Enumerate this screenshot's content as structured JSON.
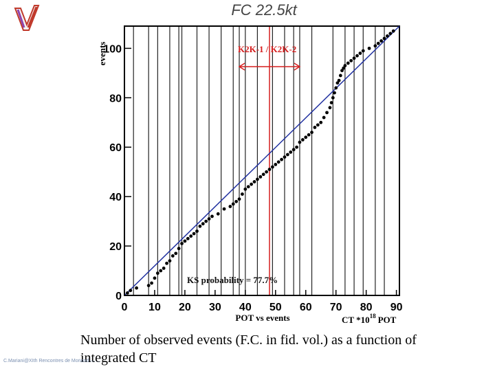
{
  "slide": {
    "title": "FC 22.5kt",
    "caption": "Number of observed events (F.C. in fid. vol.) as a function of integrated CT",
    "footer": "C.Mariani@XIth Rencontres de Moriond — ..."
  },
  "chart_data": {
    "type": "scatter",
    "title": "",
    "xlabel": "POT vs events",
    "xunit_label": "CT *10",
    "xunit_exp": "18",
    "xunit_suffix": "POT",
    "ylabel": "events",
    "xlim": [
      0,
      91
    ],
    "ylim": [
      0,
      109
    ],
    "xticks": [
      0,
      10,
      20,
      30,
      40,
      50,
      60,
      70,
      80,
      90
    ],
    "yticks": [
      0,
      20,
      40,
      60,
      80,
      100
    ],
    "grid": false,
    "fit_line": [
      [
        0,
        0
      ],
      [
        91,
        109
      ]
    ],
    "period_boundaries": [
      3,
      8,
      11,
      15,
      18,
      19,
      24,
      28,
      32,
      36,
      38,
      40,
      44,
      49,
      53,
      56,
      58,
      62,
      69,
      73,
      76,
      79,
      83,
      86
    ],
    "red_marker": 48,
    "period_label": "K2K-1 / K2K-2",
    "period_arrow": [
      38,
      58
    ],
    "annotation": "KS probability = 77.7%",
    "series": [
      {
        "name": "",
        "x": [
          1,
          2,
          4,
          8,
          9,
          10,
          11,
          12,
          13,
          14,
          15,
          16,
          17,
          18,
          19,
          20,
          21,
          22,
          23,
          24,
          25,
          26,
          27,
          28,
          29,
          31,
          33,
          35,
          36,
          37,
          38,
          39,
          40,
          41,
          42,
          43,
          44,
          45,
          46,
          47,
          48,
          49,
          50,
          51,
          52,
          53,
          54,
          55,
          56,
          57,
          58,
          59,
          60,
          61,
          62,
          63,
          64,
          65,
          66,
          67,
          68,
          68.5,
          69,
          69.5,
          70,
          70.5,
          71,
          71.5,
          72,
          72.5,
          73,
          74,
          75,
          76,
          77,
          78,
          79,
          81,
          83,
          84,
          85,
          86,
          87,
          88,
          89
        ],
        "y": [
          1,
          2,
          3,
          4,
          5,
          7,
          9,
          10,
          11,
          13,
          14,
          16,
          17,
          19,
          21,
          22,
          23,
          24,
          25,
          26,
          28,
          29,
          30,
          31,
          32,
          33,
          35,
          36,
          37,
          38,
          39,
          41,
          43,
          44,
          45,
          46,
          47,
          48,
          49,
          50,
          51,
          52,
          53,
          54,
          55,
          56,
          57,
          58,
          59,
          60,
          62,
          63,
          64,
          65,
          66,
          68,
          69,
          70,
          72,
          74,
          76,
          78,
          80,
          82,
          84,
          86,
          87,
          89,
          91,
          92,
          93,
          94,
          95,
          96,
          97,
          98,
          99,
          100,
          101,
          102,
          103,
          104,
          105,
          106,
          107
        ]
      }
    ]
  }
}
